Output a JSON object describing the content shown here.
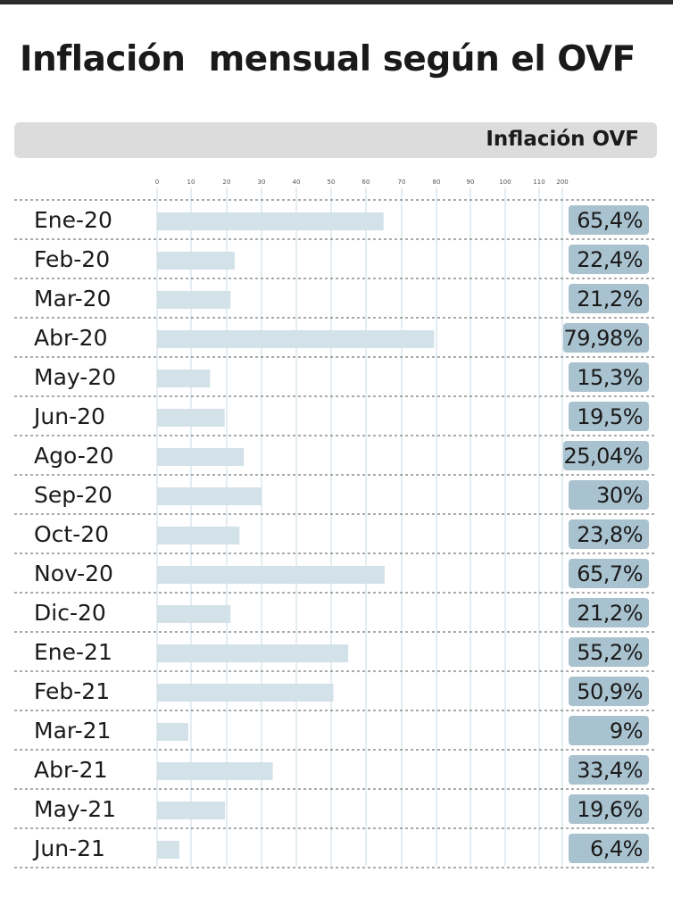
{
  "title": "Inflación  mensual según el OVF",
  "header_label": "Inflación OVF",
  "colors": {
    "bar": "#d3e1e8",
    "badge": "#a9c2cf",
    "header": "#dcdcdc",
    "grid": "#c9dbe4"
  },
  "chart_data": {
    "type": "bar",
    "orientation": "horizontal",
    "title": "Inflación  mensual según el OVF",
    "xlabel": "",
    "ylabel": "",
    "ticks": [
      "0",
      "10",
      "20",
      "30",
      "40",
      "50",
      "60",
      "70",
      "80",
      "90",
      "100",
      "110",
      "200"
    ],
    "categories": [
      "Ene-20",
      "Feb-20",
      "Mar-20",
      "Abr-20",
      "May-20",
      "Jun-20",
      "Ago-20",
      "Sep-20",
      "Oct-20",
      "Nov-20",
      "Dic-20",
      "Ene-21",
      "Feb-21",
      "Mar-21",
      "Abr-21",
      "May-21",
      "Jun-21"
    ],
    "series": [
      {
        "name": "Inflación OVF",
        "values": [
          65.4,
          22.4,
          21.2,
          79.98,
          15.3,
          19.5,
          25.04,
          30,
          23.8,
          65.7,
          21.2,
          55.2,
          50.9,
          9,
          33.4,
          19.6,
          6.4
        ]
      }
    ],
    "value_labels": [
      "65,4%",
      "22,4%",
      "21,2%",
      "79,98%",
      "15,3%",
      "19,5%",
      "25,04%",
      "30%",
      "23,8%",
      "65,7%",
      "21,2%",
      "55,2%",
      "50,9%",
      "9%",
      "33,4%",
      "19,6%",
      "6,4%"
    ],
    "grid": true
  }
}
